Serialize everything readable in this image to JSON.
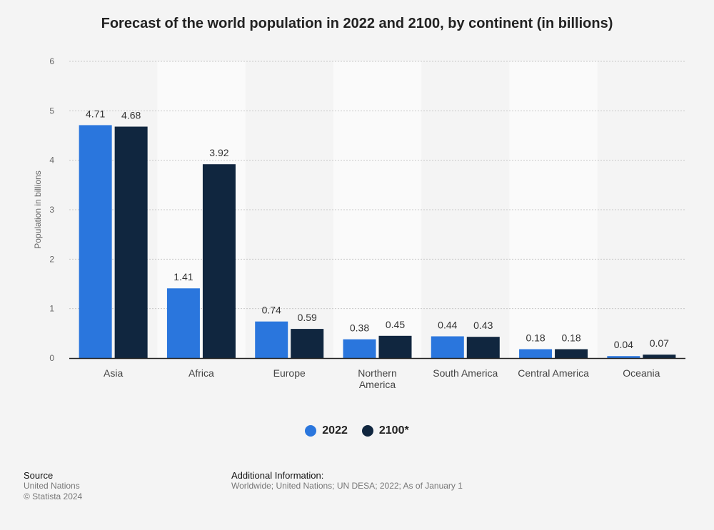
{
  "chart_data": {
    "type": "bar",
    "title": "Forecast of the world population in 2022 and 2100, by continent (in billions)",
    "xlabel": "",
    "ylabel": "Population in billions",
    "ylim": [
      0,
      6
    ],
    "yticks": [
      "0",
      "1",
      "2",
      "3",
      "4",
      "5",
      "6"
    ],
    "categories": [
      [
        "Asia"
      ],
      [
        "Africa"
      ],
      [
        "Europe"
      ],
      [
        "Northern",
        "America"
      ],
      [
        "South America"
      ],
      [
        "Central America"
      ],
      [
        "Oceania"
      ]
    ],
    "series": [
      {
        "name": "2022",
        "color": "#2a76dd",
        "values": [
          4.71,
          1.41,
          0.74,
          0.38,
          0.44,
          0.18,
          0.04
        ]
      },
      {
        "name": "2100*",
        "color": "#10263f",
        "values": [
          4.68,
          3.92,
          0.59,
          0.45,
          0.43,
          0.18,
          0.07
        ]
      }
    ],
    "grid": true,
    "legend_position": "bottom"
  },
  "footer": {
    "source_heading": "Source",
    "source_text": "United Nations",
    "copyright": "© Statista 2024",
    "info_heading": "Additional Information:",
    "info_text": "Worldwide; United Nations; UN DESA; 2022; As of January 1"
  }
}
